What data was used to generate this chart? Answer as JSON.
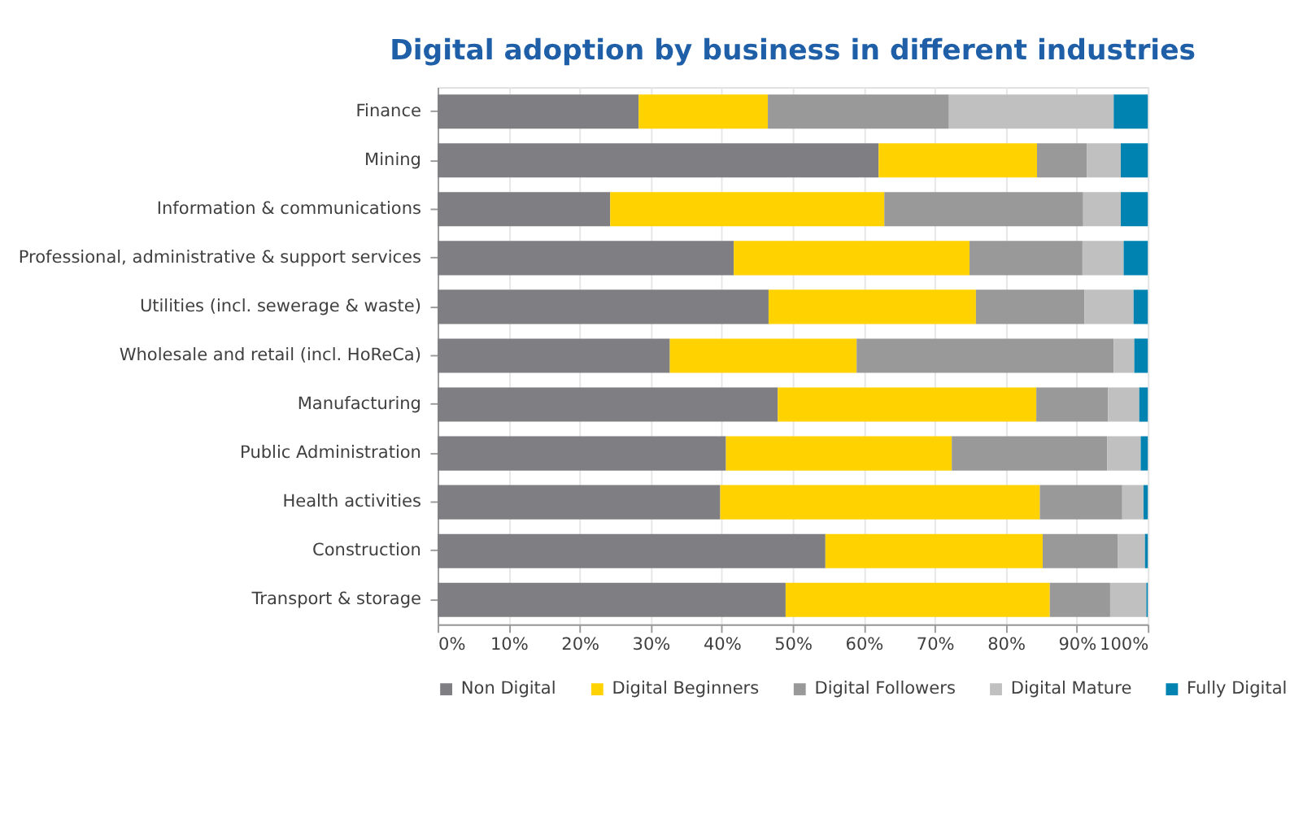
{
  "chart_data": {
    "type": "bar",
    "orientation": "horizontal",
    "stacked": true,
    "title": "Digital adoption by business in different industries",
    "categories": [
      "Finance",
      "Mining",
      "Information & communications",
      "Professional, administrative & support services",
      "Utilities (incl. sewerage & waste)",
      "Wholesale and retail (incl. HoReCa)",
      "Manufacturing",
      "Public Administration",
      "Health activities",
      "Construction",
      "Transport & storage"
    ],
    "series": [
      {
        "name": "Non Digital",
        "color": "#7f7e82",
        "values": [
          28.3,
          62.1,
          24.3,
          41.7,
          46.6,
          32.7,
          47.9,
          40.6,
          39.8,
          54.6,
          49.0
        ]
      },
      {
        "name": "Digital Beginners",
        "color": "#ffd200",
        "values": [
          18.2,
          22.3,
          38.6,
          33.2,
          29.2,
          26.3,
          36.4,
          31.8,
          45.0,
          30.6,
          37.2
        ]
      },
      {
        "name": "Digital Followers",
        "color": "#999999",
        "values": [
          25.5,
          7.0,
          28.0,
          15.9,
          15.3,
          36.2,
          10.1,
          21.9,
          11.6,
          10.6,
          8.5
        ]
      },
      {
        "name": "Digital Mature",
        "color": "#c0c0c0",
        "values": [
          23.2,
          4.8,
          5.3,
          5.8,
          6.9,
          2.9,
          4.4,
          4.7,
          3.0,
          3.8,
          5.1
        ]
      },
      {
        "name": "Fully Digital",
        "color": "#0083b0",
        "values": [
          4.8,
          3.8,
          3.8,
          3.4,
          2.0,
          1.9,
          1.2,
          1.0,
          0.6,
          0.4,
          0.2
        ]
      }
    ],
    "xlim": [
      0,
      100
    ],
    "xticks": [
      {
        "value": 0,
        "label": "0%"
      },
      {
        "value": 10,
        "label": "10%"
      },
      {
        "value": 20,
        "label": "20%"
      },
      {
        "value": 30,
        "label": "30%"
      },
      {
        "value": 40,
        "label": "40%"
      },
      {
        "value": 50,
        "label": "50%"
      },
      {
        "value": 60,
        "label": "60%"
      },
      {
        "value": 70,
        "label": "70%"
      },
      {
        "value": 80,
        "label": "80%"
      },
      {
        "value": 90,
        "label": "90%"
      },
      {
        "value": 100,
        "label": "100%"
      }
    ],
    "grid": "x",
    "legend": "bottom"
  }
}
